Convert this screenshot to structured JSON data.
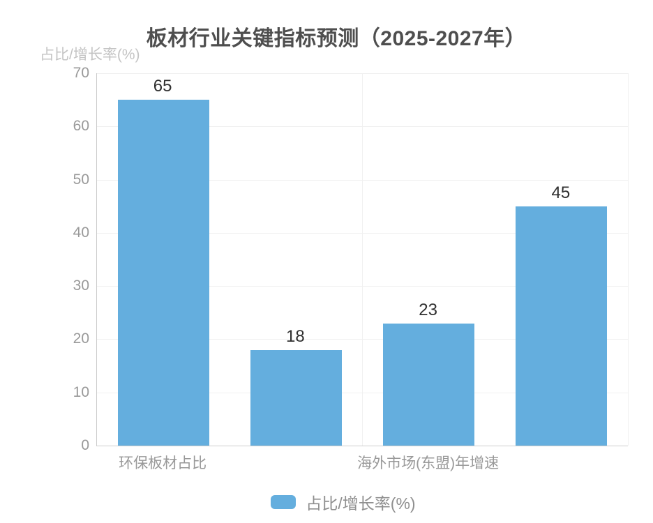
{
  "title": "板材行业关键指标预测（2025-2027年）",
  "y_axis_name": "占比/增长率(%)",
  "legend": {
    "label": "占比/增长率(%)",
    "color": "#64AEDE"
  },
  "colors": {
    "bar": "#64AEDE",
    "grid_line": "#f0f0f0",
    "axis_line": "#cccccc",
    "tick_text": "#999999",
    "axis_name_text": "#c4c4c4",
    "title_text": "#4e4e4e",
    "value_label_text": "#2f2f2f",
    "background": "#ffffff"
  },
  "chart_data": {
    "type": "bar",
    "title": "板材行业关键指标预测（2025-2027年）",
    "ylabel": "占比/增长率(%)",
    "xlabel": "",
    "categories": [
      "环保板材占比",
      "",
      "海外市场(东盟)年增速",
      ""
    ],
    "series": [
      {
        "name": "占比/增长率(%)",
        "values": [
          65,
          18,
          23,
          45
        ]
      }
    ],
    "value_labels_shown": true,
    "ylim": [
      0,
      70
    ],
    "yticks": [
      0,
      10,
      20,
      30,
      40,
      50,
      60,
      70
    ],
    "grid": true,
    "bar_color": "#64AEDE",
    "legend_position": "bottom"
  }
}
